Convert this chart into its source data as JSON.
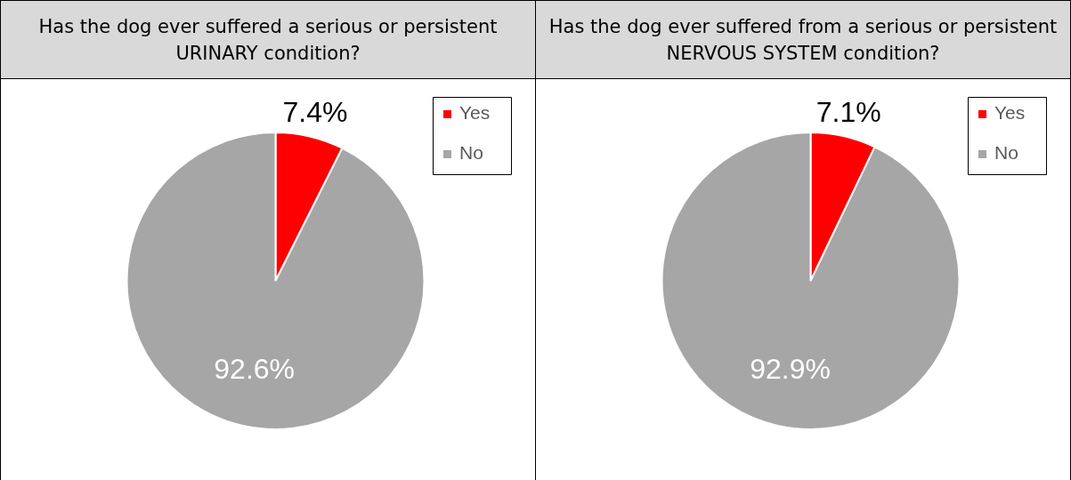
{
  "chart_data": [
    {
      "type": "pie",
      "title": "Has the dog ever suffered a serious or persistent URINARY condition?",
      "categories": [
        "Yes",
        "No"
      ],
      "values": [
        7.4,
        92.6
      ],
      "colors": [
        "#ff0000",
        "#a6a6a6"
      ],
      "value_labels": [
        "7.4%",
        "92.6%"
      ],
      "legend": "top right"
    },
    {
      "type": "pie",
      "title": "Has the dog ever suffered from a serious or persistent NERVOUS SYSTEM condition?",
      "categories": [
        "Yes",
        "No"
      ],
      "values": [
        7.1,
        92.9
      ],
      "colors": [
        "#ff0000",
        "#a6a6a6"
      ],
      "value_labels": [
        "7.1%",
        "92.9%"
      ],
      "legend": "top right"
    }
  ]
}
